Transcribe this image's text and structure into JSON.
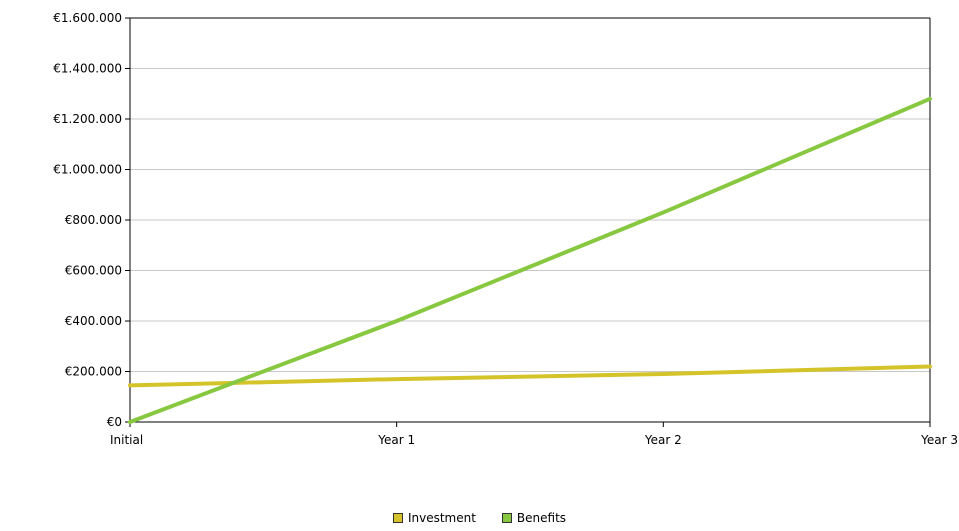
{
  "chart_data": {
    "type": "line",
    "title": "",
    "xlabel": "",
    "ylabel": "",
    "categories": [
      "Initial",
      "Year 1",
      "Year 2",
      "Year 3"
    ],
    "y_ticks": [
      0,
      200000,
      400000,
      600000,
      800000,
      1000000,
      1200000,
      1400000,
      1600000
    ],
    "y_tick_labels": [
      "€0",
      "€200.000",
      "€400.000",
      "€600.000",
      "€800.000",
      "€1.000.000",
      "€1.200.000",
      "€1.400.000",
      "€1.600.000"
    ],
    "ylim": [
      0,
      1600000
    ],
    "grid": true,
    "legend_position": "bottom-center",
    "series": [
      {
        "name": "Investment",
        "color": "#d4c42a",
        "values": [
          145000,
          170000,
          190000,
          220000
        ]
      },
      {
        "name": "Benefits",
        "color": "#88c840",
        "values": [
          0,
          400000,
          830000,
          1280000
        ]
      }
    ]
  }
}
